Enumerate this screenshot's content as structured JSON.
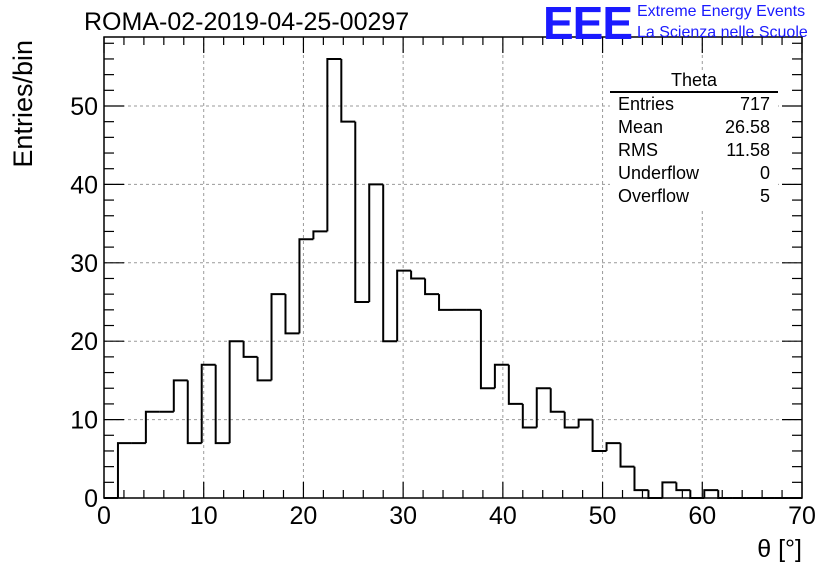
{
  "header": {
    "title": "ROMA-02-2019-04-25-00297",
    "logo_text": "EEE",
    "logo_line1": "Extreme Energy Events",
    "logo_line2": "La Scienza nelle Scuole"
  },
  "stats": {
    "title": "Theta",
    "rows": [
      {
        "label": "Entries",
        "value": "717"
      },
      {
        "label": "Mean",
        "value": "26.58"
      },
      {
        "label": "RMS",
        "value": "11.58"
      },
      {
        "label": "Underflow",
        "value": "0"
      },
      {
        "label": "Overflow",
        "value": "5"
      }
    ]
  },
  "colors": {
    "logo": "#1a1aff",
    "line": "#000000",
    "grid": "#9a9a9a"
  },
  "chart_data": {
    "type": "bar",
    "histogram": true,
    "title": "ROMA-02-2019-04-25-00297",
    "xlabel": "θ [°]",
    "ylabel": "Entries/bin",
    "xlim": [
      0,
      70
    ],
    "ylim": [
      0,
      58.8
    ],
    "xticks": [
      0,
      10,
      20,
      30,
      40,
      50,
      60,
      70
    ],
    "yticks": [
      0,
      10,
      20,
      30,
      40,
      50
    ],
    "grid": true,
    "bin_edges": [
      0,
      1.4,
      2.8,
      4.2,
      5.6,
      7,
      8.4,
      9.8,
      11.2,
      12.6,
      14,
      15.4,
      16.8,
      18.2,
      19.6,
      21,
      22.4,
      23.8,
      25.2,
      26.6,
      28,
      29.4,
      30.8,
      32.2,
      33.6,
      35,
      36.4,
      37.8,
      39.2,
      40.6,
      42,
      43.4,
      44.8,
      46.2,
      47.6,
      49,
      50.4,
      51.8,
      53.2,
      54.6,
      56,
      57.4,
      58.8,
      60.2,
      61.6,
      63,
      64.4,
      65.8,
      67.2,
      68.6,
      70
    ],
    "values": [
      0,
      7,
      7,
      11,
      11,
      15,
      7,
      17,
      7,
      20,
      18,
      15,
      26,
      21,
      33,
      34,
      56,
      48,
      25,
      40,
      20,
      29,
      28,
      26,
      24,
      24,
      24,
      14,
      17,
      12,
      9,
      14,
      11,
      9,
      10,
      6,
      7,
      4,
      1,
      0,
      2,
      1,
      0,
      1,
      0,
      0,
      0,
      0,
      0,
      0
    ]
  }
}
